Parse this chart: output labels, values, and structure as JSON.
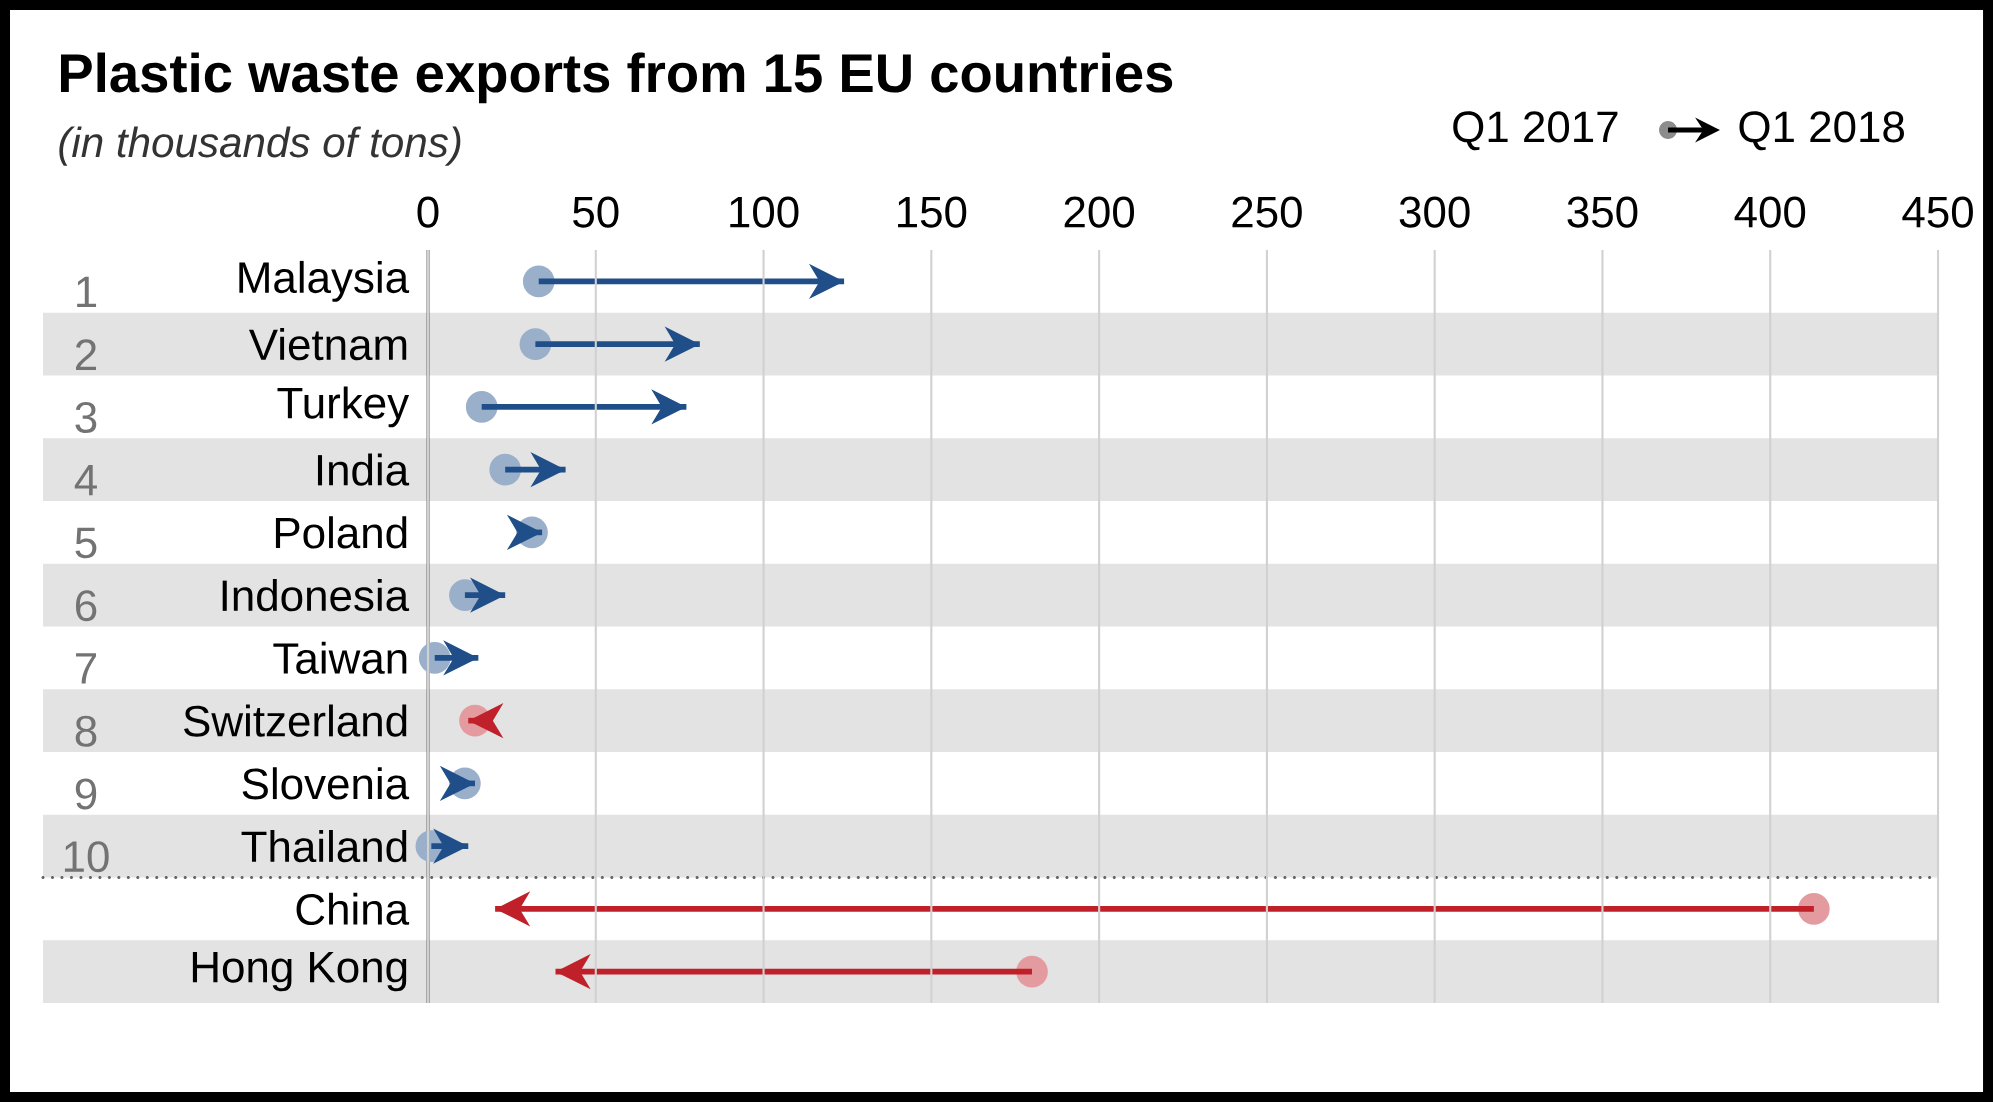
{
  "chart_data": {
    "type": "bar",
    "orientation": "horizontal",
    "title": "Plastic waste exports from 15 EU countries",
    "subtitle": "(in thousands of tons)",
    "categories": [
      "Malaysia",
      "Vietnam",
      "Turkey",
      "India",
      "Poland",
      "Indonesia",
      "Taiwan",
      "Switzerland",
      "Slovenia",
      "Thailand",
      "China",
      "Hong Kong"
    ],
    "base": [
      33,
      32,
      16,
      23,
      31,
      11,
      2,
      14,
      11,
      1,
      413,
      180
    ],
    "values": [
      91,
      49,
      61,
      18,
      3,
      12,
      13,
      -2,
      3,
      11,
      -393,
      -142
    ],
    "colors": [
      "#1f4e89",
      "#1f4e89",
      "#1f4e89",
      "#1f4e89",
      "#1f4e89",
      "#1f4e89",
      "#1f4e89",
      "#c0202a",
      "#1f4e89",
      "#1f4e89",
      "#c0202a",
      "#c0202a"
    ],
    "xlim": [
      0,
      450
    ],
    "xticks": [
      0,
      50,
      100,
      150,
      200,
      250,
      300,
      350,
      400,
      450
    ],
    "grid": "x",
    "annotations": [
      "Q1 2017",
      "Q1 2018",
      "1",
      "2",
      "3",
      "4",
      "5",
      "6",
      "7",
      "8",
      "9",
      "10"
    ]
  }
}
